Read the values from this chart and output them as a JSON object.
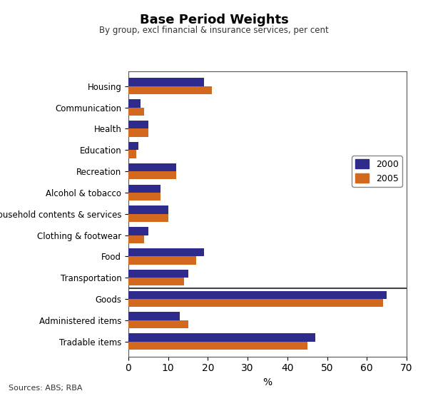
{
  "title": "Base Period Weights",
  "subtitle": "By group, excl financial & insurance services, per cent",
  "source": "Sources: ABS; RBA",
  "categories": [
    "Housing",
    "Communication",
    "Health",
    "Education",
    "Recreation",
    "Alcohol & tobacco",
    "Household contents & services",
    "Clothing & footwear",
    "Food",
    "Transportation",
    "Goods",
    "Administered items",
    "Tradable items"
  ],
  "values_2000": [
    19,
    3,
    5,
    2.5,
    12,
    8,
    10,
    5,
    19,
    15,
    65,
    13,
    47
  ],
  "values_2005": [
    21,
    4,
    5,
    2,
    12,
    8,
    10,
    4,
    17,
    14,
    64,
    15,
    45
  ],
  "color_2000": "#2E2B8C",
  "color_2005": "#D2691E",
  "xlim": [
    0,
    70
  ],
  "xticks": [
    0,
    10,
    20,
    30,
    40,
    50,
    60,
    70
  ],
  "xlabel": "%",
  "legend_labels": [
    "2000",
    "2005"
  ],
  "background_color": "#ffffff",
  "bar_height": 0.38,
  "figsize": [
    6.0,
    5.55
  ],
  "dpi": 100
}
